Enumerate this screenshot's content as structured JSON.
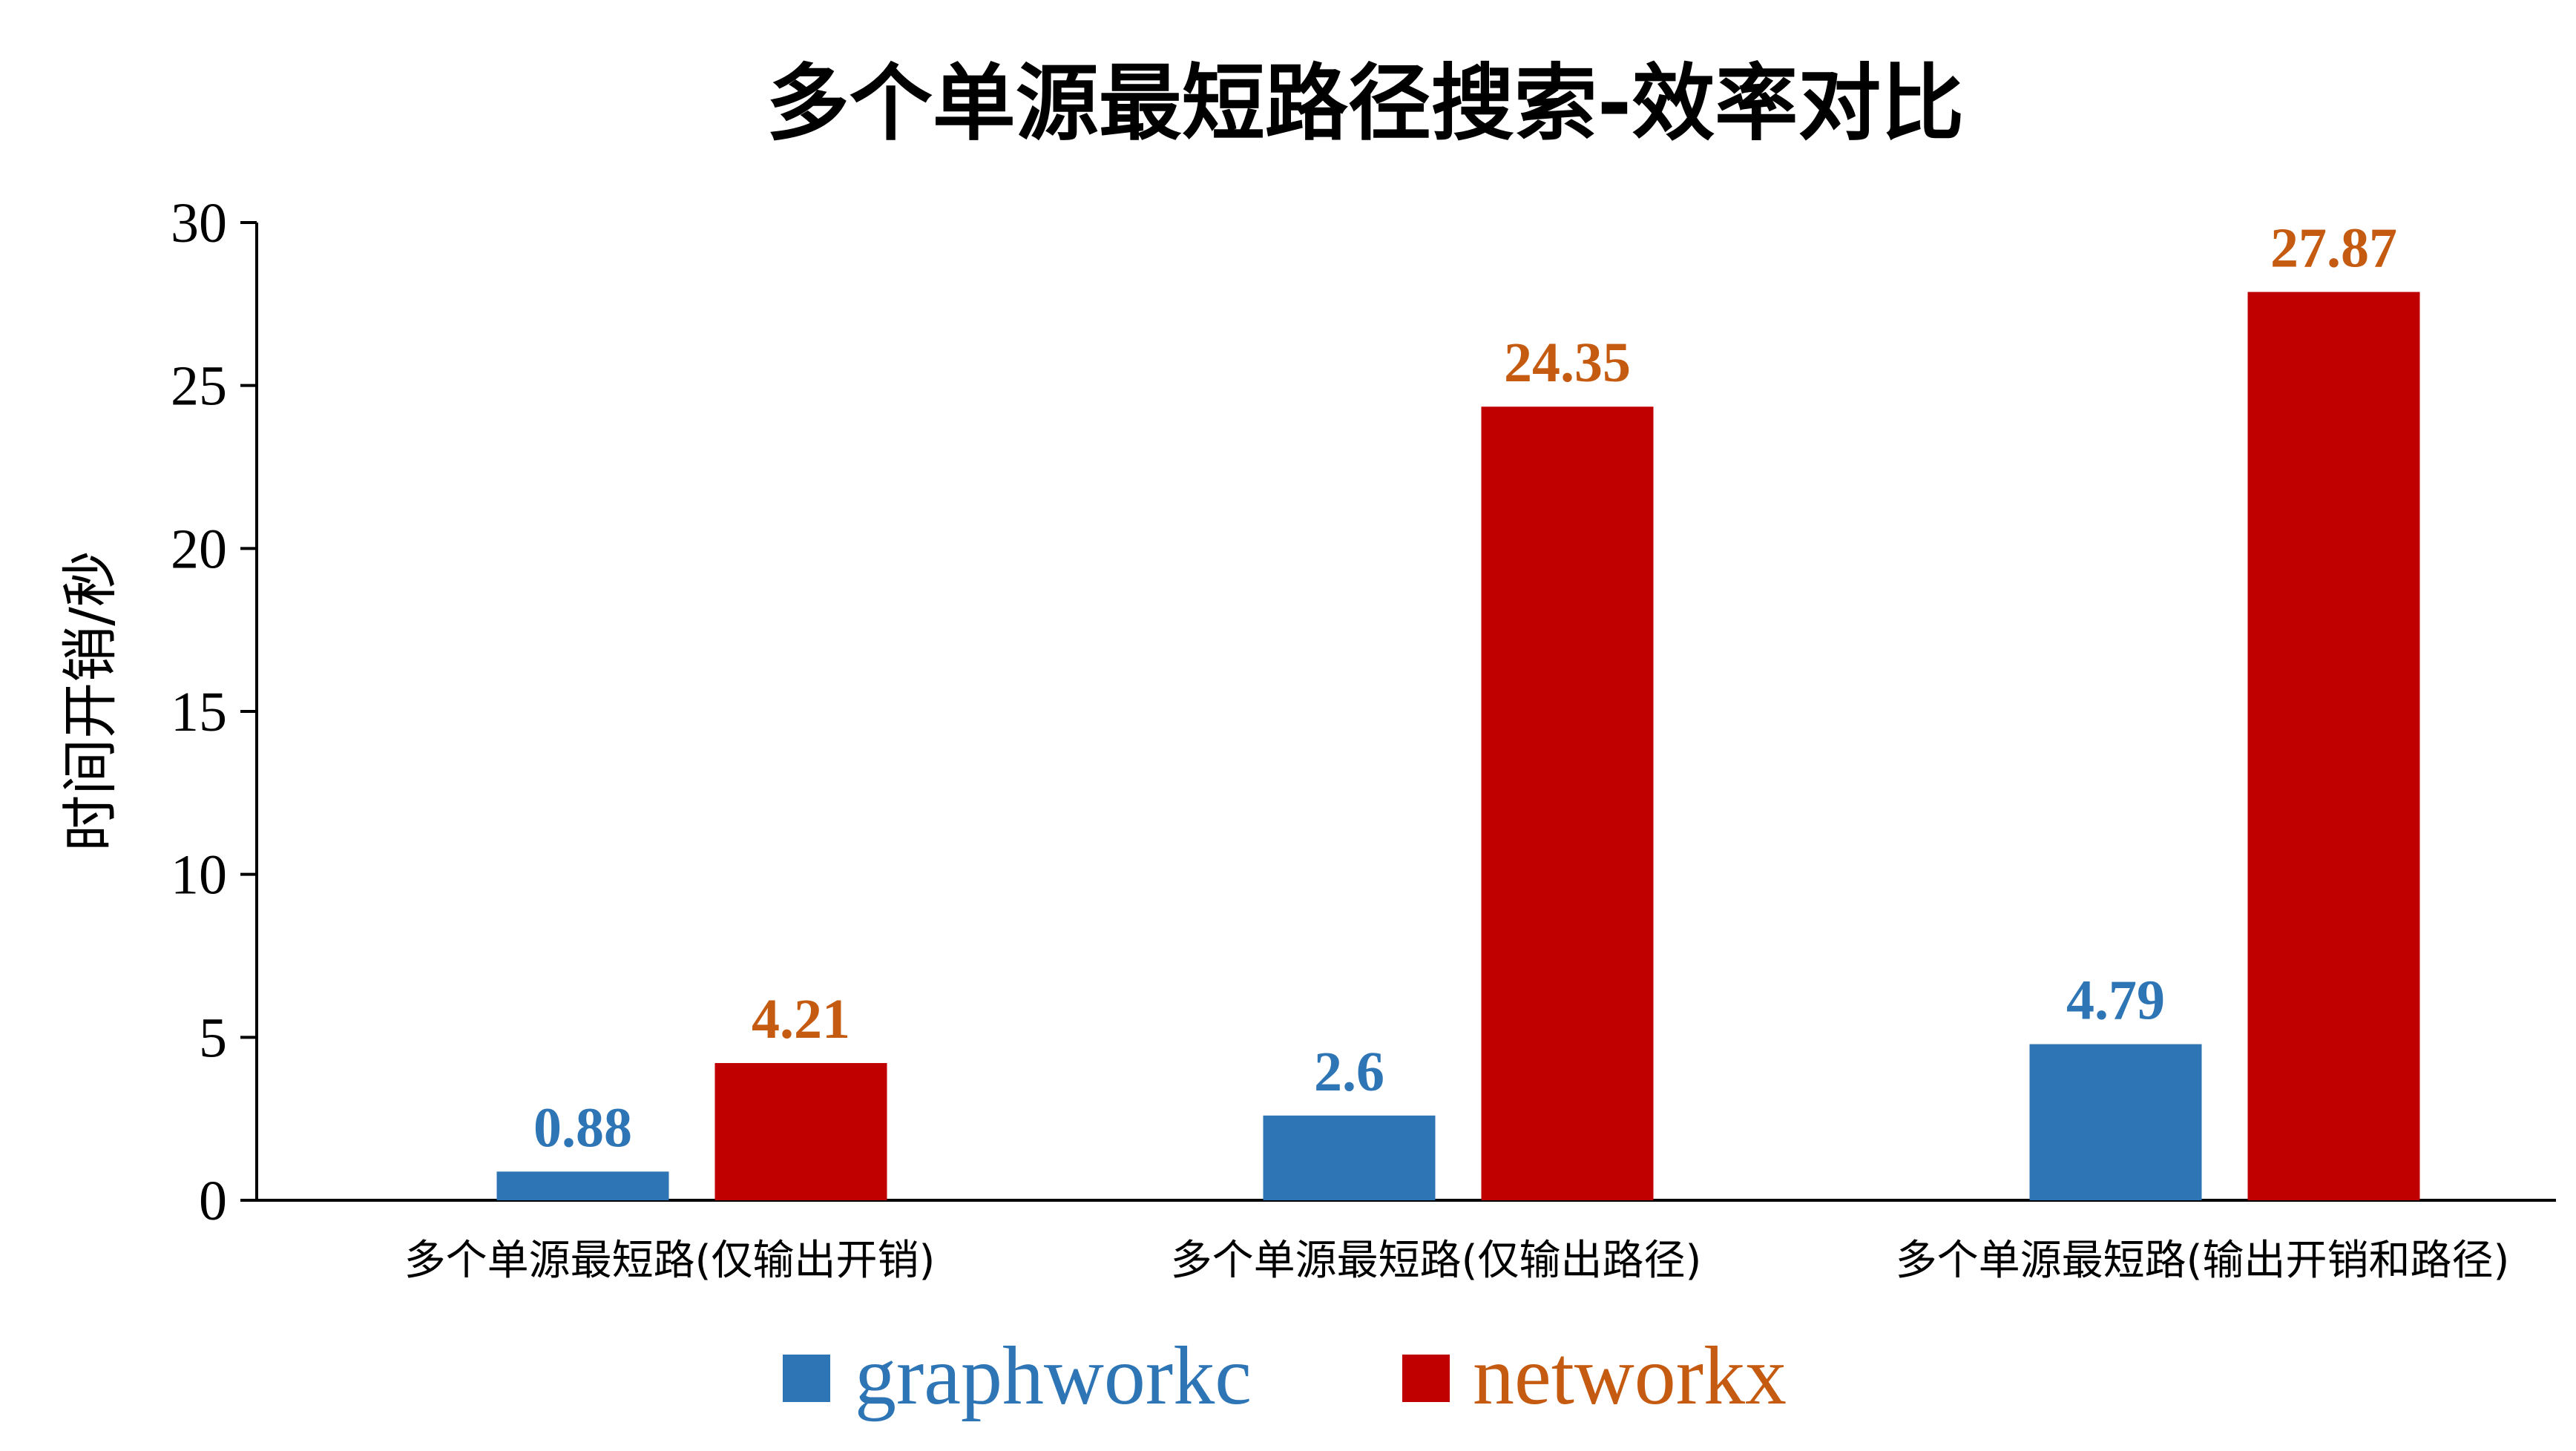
{
  "chart_data": {
    "type": "bar",
    "title": "多个单源最短路径搜索-效率对比",
    "ylabel": "时间开销/秒",
    "xlabel": "",
    "ylim": [
      0,
      30
    ],
    "yticks": [
      0,
      5,
      10,
      15,
      20,
      25,
      30
    ],
    "grid": false,
    "legend_position": "bottom",
    "categories": [
      "多个单源最短路(仅输出开销)",
      "多个单源最短路(仅输出路径)",
      "多个单源最短路(输出开销和路径)"
    ],
    "series": [
      {
        "name": "graphworkc",
        "values": [
          0.88,
          2.6,
          4.79
        ],
        "labels": [
          "0.88",
          "2.6",
          "4.79"
        ],
        "color": "#2E75B6",
        "label_color": "#2E75B6"
      },
      {
        "name": "networkx",
        "values": [
          4.21,
          24.35,
          27.87
        ],
        "labels": [
          "4.21",
          "24.35",
          "27.87"
        ],
        "color": "#C00000",
        "label_color": "#C55A11"
      }
    ]
  }
}
